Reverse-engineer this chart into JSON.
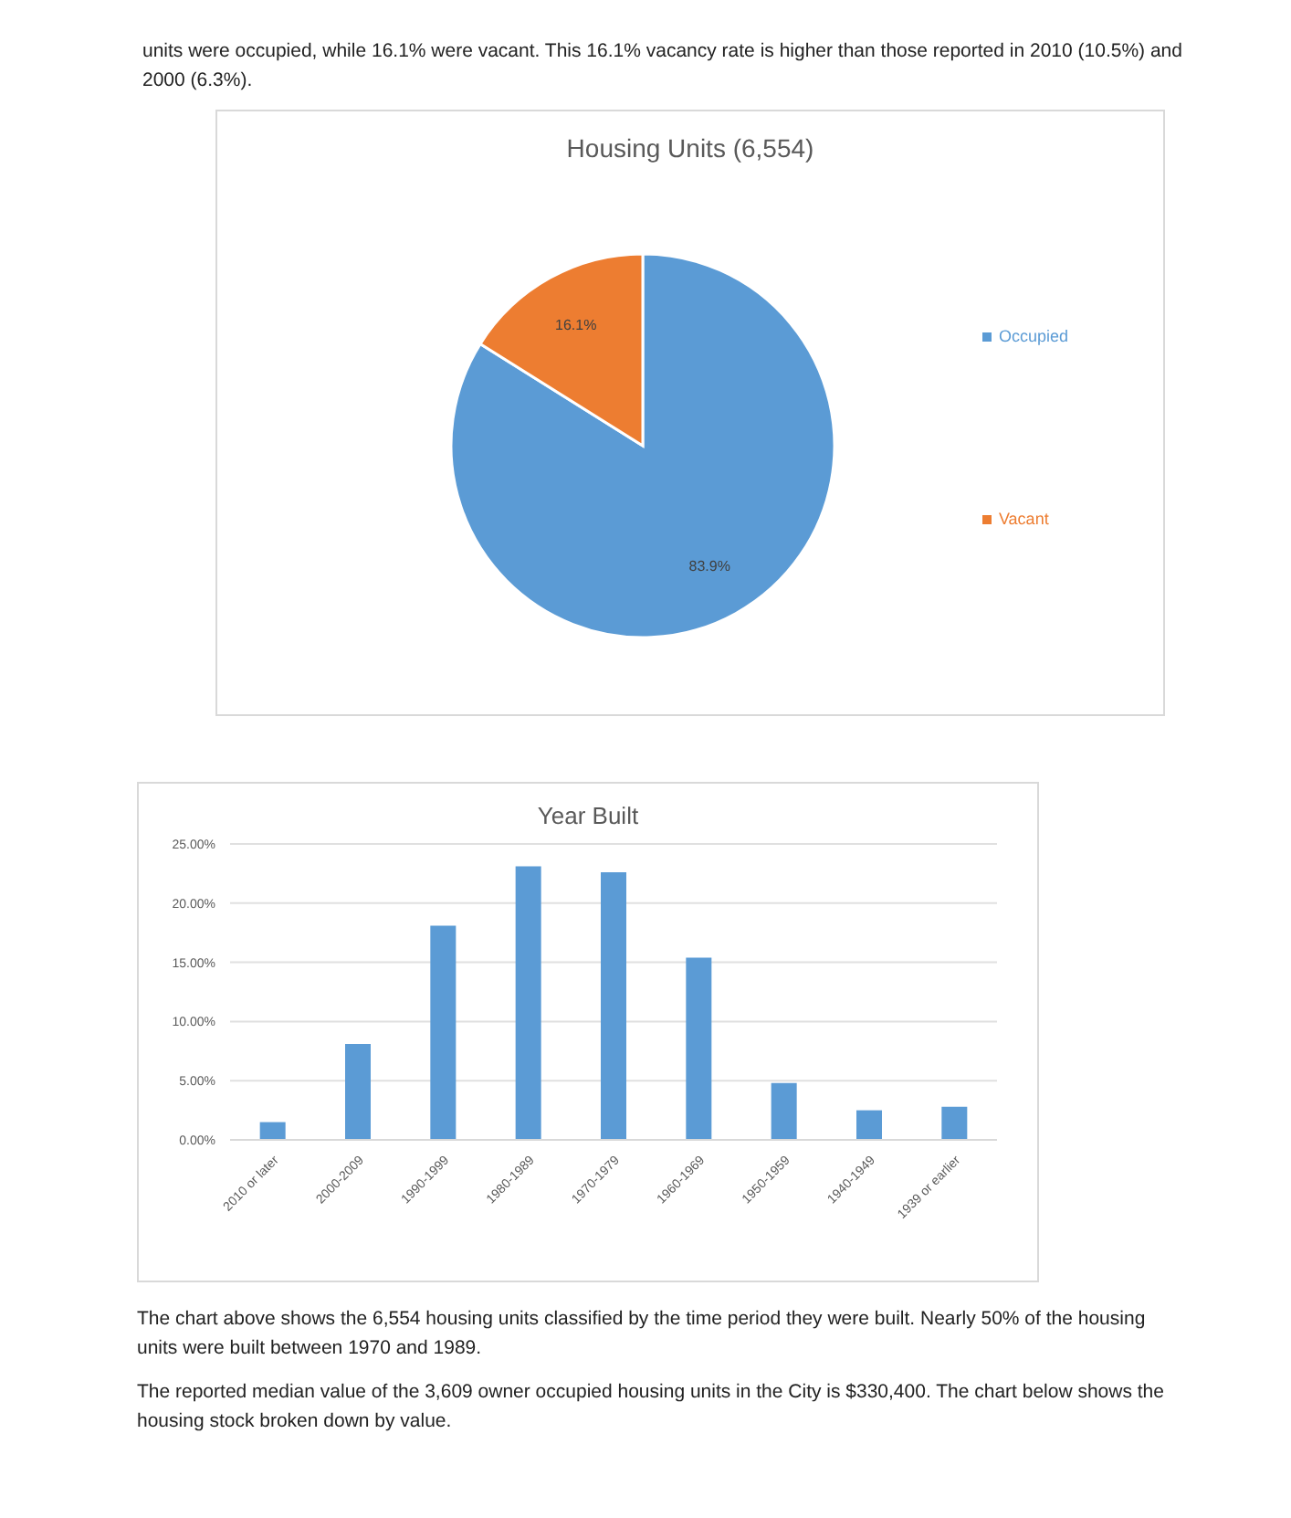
{
  "chart_data": [
    {
      "type": "pie",
      "title": "Housing Units (6,554)",
      "categories": [
        "Occupied",
        "Vacant"
      ],
      "values": [
        83.9,
        16.1
      ],
      "colors": [
        "#5b9bd5",
        "#ed7d31"
      ],
      "value_labels": [
        "83.9%",
        "16.1%"
      ],
      "legend": "right",
      "annotations": [
        "units were occupied, while 16.1% were vacant. This 16.1% vacancy rate is higher than those reported in 2010 (10.5%) and 2000 (6.3%)."
      ]
    },
    {
      "type": "bar",
      "title": "Year Built",
      "categories": [
        "2010 or later",
        "2000-2009",
        "1990-1999",
        "1980-1989",
        "1970-1979",
        "1960-1969",
        "1950-1959",
        "1940-1949",
        "1939 or earlier"
      ],
      "values": [
        1.5,
        8.1,
        18.1,
        23.1,
        22.6,
        15.4,
        4.8,
        2.5,
        2.8
      ],
      "color": "#5b9bd5",
      "ylim": [
        0,
        25
      ],
      "yticks": [
        {
          "value": 0,
          "label": "0.00%"
        },
        {
          "value": 5,
          "label": "5.00%"
        },
        {
          "value": 10,
          "label": "10.00%"
        },
        {
          "value": 15,
          "label": "15.00%"
        },
        {
          "value": 20,
          "label": "20.00%"
        },
        {
          "value": 25,
          "label": "25.00%"
        }
      ],
      "grid": "y",
      "annotations": [
        "The chart above shows the 6,554 housing units classified by the time period they were built. Nearly 50% of the housing units were built between 1970 and 1989.",
        "The reported median value of the 3,609 owner occupied housing units in the City is $330,400. The chart below shows the housing stock broken down by value."
      ]
    }
  ]
}
